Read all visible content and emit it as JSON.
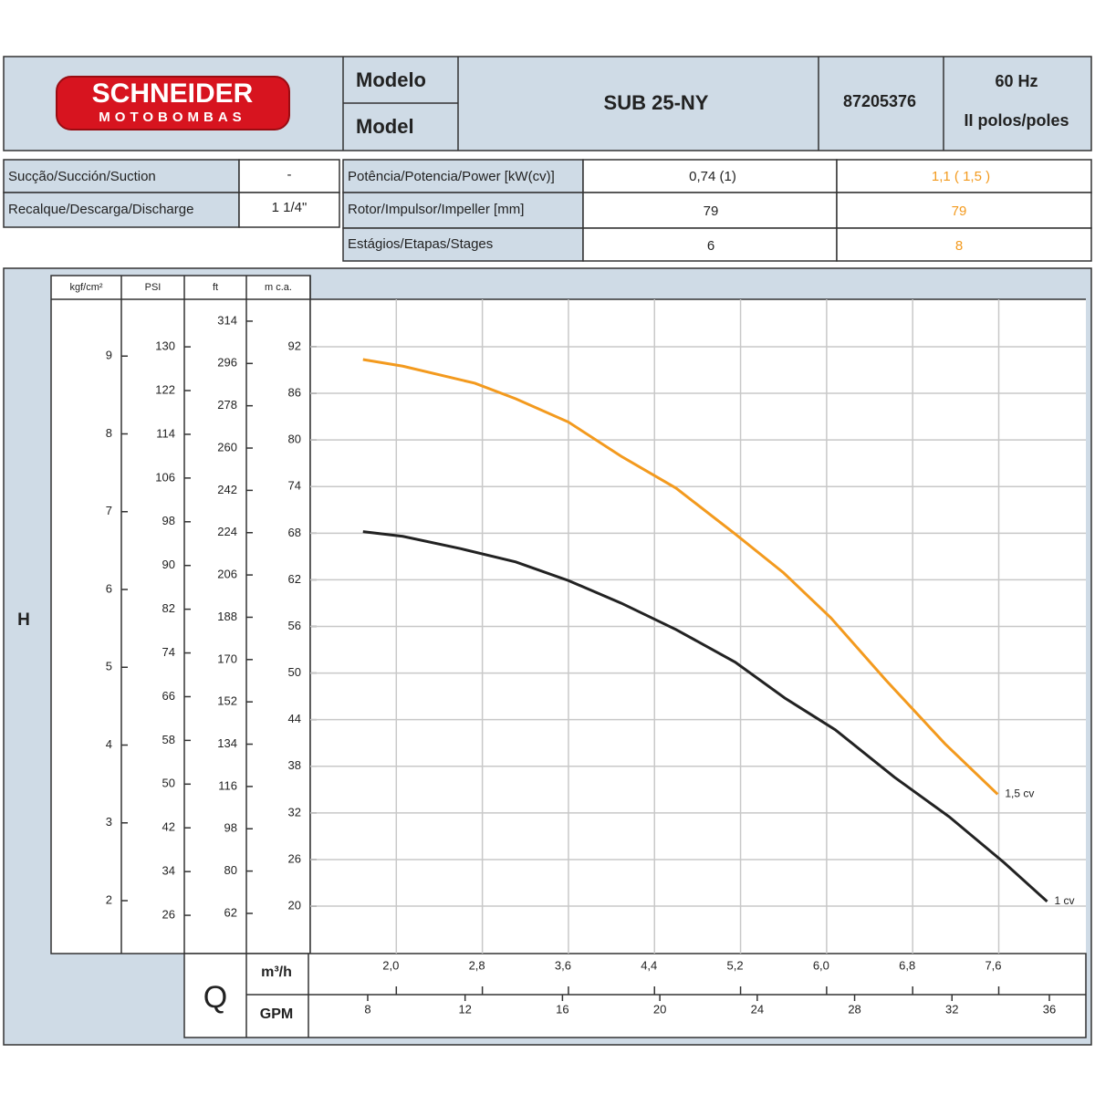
{
  "header": {
    "brand": "SCHNEIDER",
    "brand_sub": "MOTOBOMBAS",
    "model_label_pt": "Modelo",
    "model_label_en": "Model",
    "model": "SUB 25-NY",
    "code": "87205376",
    "frequency": "60 Hz",
    "poles": "II polos/poles"
  },
  "connections": {
    "rows": [
      [
        "Sucção/Succión/Suction",
        "-"
      ],
      [
        "Recalque/Descarga/Discharge",
        "1 1/4\""
      ]
    ]
  },
  "specs": {
    "rows": [
      [
        "Potência/Potencia/Power [kW(cv)]",
        "0,74 (1)",
        "1,1 ( 1,5 )"
      ],
      [
        "Rotor/Impulsor/Impeller [mm]",
        "79",
        "79"
      ],
      [
        "Estágios/Etapas/Stages",
        "6",
        "8"
      ]
    ]
  },
  "chart_data": {
    "type": "line",
    "y_label": "H",
    "x_label": "Q",
    "x_unit": "m³/h",
    "x2_unit": "GPM",
    "y_unit": "m c.a.",
    "xlim": [
      1.2,
      8.41
    ],
    "xticks": [
      {
        "value": 2,
        "label": "2,0"
      },
      {
        "value": 2.8,
        "label": "2,8"
      },
      {
        "value": 3.6,
        "label": "3,6"
      },
      {
        "value": 4.4,
        "label": "4,4"
      },
      {
        "value": 5.2,
        "label": "5,2"
      },
      {
        "value": 6,
        "label": "6,0"
      },
      {
        "value": 6.8,
        "label": "6,8"
      },
      {
        "value": 7.6,
        "label": "7,6"
      }
    ],
    "x2lim": [
      5.64,
      37.5
    ],
    "x2ticks": [
      8,
      12,
      16,
      20,
      24,
      28,
      32,
      36
    ],
    "ylim": [
      13.9,
      98.1
    ],
    "yticks": [
      20,
      26,
      32,
      38,
      44,
      50,
      56,
      62,
      68,
      74,
      80,
      86,
      92
    ],
    "secondary_axes": [
      {
        "unit": "kgf/cm²",
        "lim": [
          1.32,
          9.73
        ],
        "ticks": [
          2,
          3,
          4,
          5,
          6,
          7,
          8,
          9
        ]
      },
      {
        "unit": "PSI",
        "lim": [
          19,
          138.7
        ],
        "ticks": [
          26,
          34,
          42,
          50,
          58,
          66,
          74,
          82,
          90,
          98,
          106,
          114,
          122,
          130
        ]
      },
      {
        "unit": "ft",
        "lim": [
          44.9,
          323.3
        ],
        "ticks": [
          62,
          80,
          98,
          116,
          134,
          152,
          170,
          188,
          206,
          224,
          242,
          260,
          278,
          296,
          314
        ]
      }
    ],
    "grid": true,
    "series": [
      {
        "name": "1,5 cv",
        "color": "#f39a1e",
        "x": [
          1.69,
          2.06,
          2.73,
          3.11,
          3.6,
          4.09,
          4.6,
          5.15,
          5.6,
          6.04,
          6.55,
          7.1,
          7.59
        ],
        "values": [
          90.35,
          89.5,
          87.3,
          85.3,
          82.3,
          77.9,
          73.8,
          67.9,
          62.9,
          57.1,
          49.1,
          40.9,
          34.4
        ]
      },
      {
        "name": "1 cv",
        "color": "#222222",
        "x": [
          1.69,
          2.06,
          2.6,
          3.11,
          3.6,
          4.09,
          4.6,
          5.15,
          5.61,
          6.08,
          6.63,
          7.14,
          7.65,
          8.05
        ],
        "values": [
          68.2,
          67.6,
          66.0,
          64.3,
          61.9,
          59.0,
          55.6,
          51.4,
          46.8,
          42.7,
          36.6,
          31.5,
          25.6,
          20.6
        ]
      }
    ]
  }
}
